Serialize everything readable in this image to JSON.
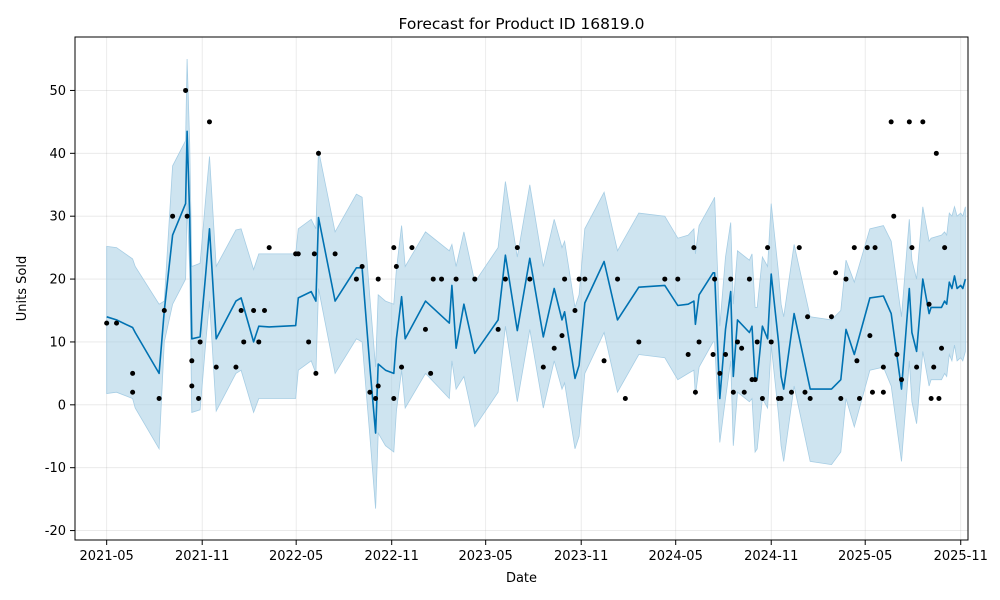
{
  "chart_data": {
    "type": "line",
    "title": "Forecast for Product ID 16819.0",
    "xlabel": "Date",
    "ylabel": "Units Sold",
    "xlim": [
      "2021-03-01",
      "2025-11-15"
    ],
    "ylim": [
      -21.5,
      58.5
    ],
    "x_ticks": [
      "2021-05",
      "2021-11",
      "2022-05",
      "2022-11",
      "2023-05",
      "2023-11",
      "2024-05",
      "2024-11",
      "2025-05",
      "2025-11"
    ],
    "y_ticks": [
      -20,
      -10,
      0,
      10,
      20,
      30,
      40,
      50
    ],
    "grid": true,
    "colors": {
      "forecast": "#0072B2",
      "interval": "#A6CDE4",
      "observed": "#000000"
    },
    "series": [
      {
        "kind": "forecast",
        "points": [
          [
            "2021-05-01",
            14.0,
            25.2,
            1.8
          ],
          [
            "2021-05-20",
            13.5,
            25.0,
            2.0
          ],
          [
            "2021-06-20",
            12.3,
            23.2,
            1.0
          ],
          [
            "2021-06-25",
            11.5,
            22.0,
            -0.5
          ],
          [
            "2021-08-10",
            5.0,
            16.0,
            -7.0
          ],
          [
            "2021-08-20",
            15.0,
            16.5,
            10.0
          ],
          [
            "2021-09-05",
            27.0,
            38.0,
            16.0
          ],
          [
            "2021-09-30",
            32.0,
            42.0,
            20.0
          ],
          [
            "2021-10-03",
            43.5,
            55.0,
            32.0
          ],
          [
            "2021-10-08",
            30.0,
            41.5,
            21.5
          ],
          [
            "2021-10-12",
            10.5,
            22.0,
            -1.2
          ],
          [
            "2021-10-28",
            10.8,
            22.5,
            -0.8
          ],
          [
            "2021-11-08",
            21.0,
            33.0,
            10.0
          ],
          [
            "2021-11-15",
            28.0,
            39.5,
            16.5
          ],
          [
            "2021-11-28",
            10.5,
            22.0,
            -1.0
          ],
          [
            "2022-01-05",
            16.5,
            27.8,
            5.0
          ],
          [
            "2022-01-15",
            17.0,
            28.0,
            5.5
          ],
          [
            "2022-02-08",
            10.0,
            21.5,
            -1.2
          ],
          [
            "2022-02-18",
            12.5,
            24.0,
            1.0
          ],
          [
            "2022-03-10",
            12.4,
            24.0,
            1.0
          ],
          [
            "2022-04-30",
            12.6,
            24.0,
            1.0
          ],
          [
            "2022-05-05",
            17.0,
            28.0,
            5.5
          ],
          [
            "2022-05-30",
            18.0,
            29.5,
            7.0
          ],
          [
            "2022-06-08",
            16.5,
            28.0,
            5.0
          ],
          [
            "2022-06-13",
            29.8,
            40.5,
            18.5
          ],
          [
            "2022-07-15",
            16.5,
            27.5,
            5.0
          ],
          [
            "2022-08-25",
            21.8,
            33.5,
            10.5
          ],
          [
            "2022-09-05",
            21.8,
            33.0,
            10.0
          ],
          [
            "2022-09-20",
            6.0,
            17.0,
            -5.0
          ],
          [
            "2022-10-01",
            -4.5,
            6.0,
            -16.5
          ],
          [
            "2022-10-06",
            6.5,
            17.5,
            -4.5
          ],
          [
            "2022-10-20",
            5.5,
            16.5,
            -6.5
          ],
          [
            "2022-11-05",
            5.0,
            16.0,
            -7.5
          ],
          [
            "2022-11-10",
            10.5,
            21.5,
            -1.0
          ],
          [
            "2022-11-20",
            17.2,
            28.5,
            5.5
          ],
          [
            "2022-11-27",
            10.5,
            22.0,
            -0.5
          ],
          [
            "2023-01-05",
            16.5,
            27.5,
            5.0
          ],
          [
            "2023-02-20",
            13.0,
            24.5,
            1.0
          ],
          [
            "2023-02-25",
            19.0,
            25.5,
            7.0
          ],
          [
            "2023-03-05",
            9.0,
            22.0,
            2.5
          ],
          [
            "2023-03-20",
            16.0,
            27.5,
            4.5
          ],
          [
            "2023-04-10",
            8.2,
            19.5,
            -3.5
          ],
          [
            "2023-05-25",
            13.5,
            25.0,
            2.0
          ],
          [
            "2023-06-08",
            23.8,
            35.5,
            12.5
          ],
          [
            "2023-07-01",
            11.8,
            23.5,
            0.5
          ],
          [
            "2023-07-25",
            23.3,
            35.0,
            12.0
          ],
          [
            "2023-08-20",
            10.8,
            22.0,
            -0.5
          ],
          [
            "2023-09-10",
            18.5,
            29.5,
            7.0
          ],
          [
            "2023-09-25",
            13.5,
            25.0,
            2.5
          ],
          [
            "2023-09-30",
            14.8,
            26.0,
            3.5
          ],
          [
            "2023-10-20",
            4.2,
            15.5,
            -7.0
          ],
          [
            "2023-10-28",
            6.3,
            17.5,
            -5.0
          ],
          [
            "2023-11-08",
            16.2,
            28.0,
            5.0
          ],
          [
            "2023-12-15",
            22.8,
            33.8,
            11.5
          ],
          [
            "2024-01-10",
            13.5,
            24.5,
            2.0
          ],
          [
            "2024-02-20",
            18.7,
            30.5,
            8.0
          ],
          [
            "2024-04-10",
            19.0,
            30.0,
            7.5
          ],
          [
            "2024-05-05",
            15.8,
            26.5,
            4.0
          ],
          [
            "2024-05-25",
            16.0,
            27.0,
            5.0
          ],
          [
            "2024-06-05",
            16.5,
            28.0,
            5.5
          ],
          [
            "2024-06-08",
            12.8,
            24.0,
            1.5
          ],
          [
            "2024-06-15",
            17.5,
            28.5,
            6.0
          ],
          [
            "2024-07-12",
            21.0,
            32.5,
            10.0
          ],
          [
            "2024-07-15",
            21.0,
            33.0,
            10.0
          ],
          [
            "2024-07-25",
            1.0,
            12.5,
            -6.0
          ],
          [
            "2024-08-05",
            12.0,
            23.5,
            1.0
          ],
          [
            "2024-08-15",
            18.0,
            29.0,
            7.0
          ],
          [
            "2024-08-20",
            4.5,
            16.0,
            -6.5
          ],
          [
            "2024-08-28",
            13.5,
            24.5,
            2.0
          ],
          [
            "2024-09-20",
            11.5,
            23.0,
            0.5
          ],
          [
            "2024-09-25",
            12.5,
            24.0,
            1.0
          ],
          [
            "2024-10-01",
            4.0,
            15.5,
            -7.5
          ],
          [
            "2024-10-05",
            4.2,
            15.5,
            -7.0
          ],
          [
            "2024-10-15",
            12.5,
            23.5,
            1.0
          ],
          [
            "2024-10-25",
            10.5,
            22.0,
            -0.5
          ],
          [
            "2024-11-01",
            20.8,
            32.0,
            9.5
          ],
          [
            "2024-11-15",
            10.0,
            21.0,
            -1.5
          ],
          [
            "2024-11-20",
            4.5,
            16.0,
            -6.5
          ],
          [
            "2024-11-25",
            2.5,
            14.0,
            -9.0
          ],
          [
            "2024-12-15",
            14.5,
            25.5,
            3.0
          ],
          [
            "2025-01-15",
            2.5,
            14.0,
            -9.0
          ],
          [
            "2025-02-25",
            2.5,
            13.5,
            -9.5
          ],
          [
            "2025-03-15",
            4.0,
            15.0,
            -7.5
          ],
          [
            "2025-03-25",
            12.0,
            23.0,
            1.0
          ],
          [
            "2025-04-10",
            8.0,
            19.5,
            -3.5
          ],
          [
            "2025-05-10",
            17.0,
            28.0,
            5.5
          ],
          [
            "2025-06-05",
            17.3,
            28.5,
            6.0
          ],
          [
            "2025-06-20",
            14.5,
            26.0,
            3.0
          ],
          [
            "2025-07-10",
            2.5,
            14.0,
            -9.0
          ],
          [
            "2025-07-25",
            18.5,
            29.5,
            7.0
          ],
          [
            "2025-07-30",
            11.5,
            23.0,
            0.5
          ],
          [
            "2025-08-08",
            8.5,
            20.0,
            -3.0
          ],
          [
            "2025-08-20",
            20.0,
            31.5,
            8.5
          ],
          [
            "2025-09-01",
            14.5,
            26.0,
            3.0
          ],
          [
            "2025-09-05",
            15.5,
            26.5,
            4.0
          ],
          [
            "2025-09-25",
            15.5,
            27.0,
            4.0
          ],
          [
            "2025-10-01",
            16.5,
            27.5,
            5.0
          ],
          [
            "2025-10-05",
            16.0,
            27.0,
            4.5
          ],
          [
            "2025-10-10",
            19.5,
            30.5,
            8.0
          ],
          [
            "2025-10-15",
            18.5,
            30.0,
            7.0
          ],
          [
            "2025-10-20",
            20.5,
            31.5,
            9.5
          ],
          [
            "2025-10-25",
            18.5,
            30.0,
            7.0
          ],
          [
            "2025-11-01",
            19.0,
            30.5,
            7.5
          ],
          [
            "2025-11-05",
            18.5,
            30.0,
            7.0
          ],
          [
            "2025-11-10",
            20.0,
            31.5,
            8.5
          ]
        ]
      },
      {
        "kind": "observed",
        "points": [
          [
            "2021-05-01",
            13
          ],
          [
            "2021-05-20",
            13
          ],
          [
            "2021-06-20",
            5
          ],
          [
            "2021-06-20",
            2
          ],
          [
            "2021-08-10",
            1
          ],
          [
            "2021-08-20",
            15
          ],
          [
            "2021-09-05",
            30
          ],
          [
            "2021-09-30",
            50
          ],
          [
            "2021-10-03",
            30
          ],
          [
            "2021-10-12",
            7
          ],
          [
            "2021-10-12",
            3
          ],
          [
            "2021-10-25",
            1
          ],
          [
            "2021-10-28",
            10
          ],
          [
            "2021-11-15",
            45
          ],
          [
            "2021-11-28",
            6
          ],
          [
            "2022-01-05",
            6
          ],
          [
            "2022-01-15",
            15
          ],
          [
            "2022-01-20",
            10
          ],
          [
            "2022-02-08",
            15
          ],
          [
            "2022-02-18",
            10
          ],
          [
            "2022-03-01",
            15
          ],
          [
            "2022-03-10",
            25
          ],
          [
            "2022-04-30",
            24
          ],
          [
            "2022-05-05",
            24
          ],
          [
            "2022-05-25",
            10
          ],
          [
            "2022-06-05",
            24
          ],
          [
            "2022-06-08",
            5
          ],
          [
            "2022-06-13",
            40
          ],
          [
            "2022-07-15",
            24
          ],
          [
            "2022-08-25",
            20
          ],
          [
            "2022-09-05",
            22
          ],
          [
            "2022-09-20",
            2
          ],
          [
            "2022-10-01",
            1
          ],
          [
            "2022-10-06",
            20
          ],
          [
            "2022-10-06",
            3
          ],
          [
            "2022-11-05",
            25
          ],
          [
            "2022-11-05",
            1
          ],
          [
            "2022-11-10",
            22
          ],
          [
            "2022-11-20",
            6
          ],
          [
            "2022-12-10",
            25
          ],
          [
            "2023-01-05",
            12
          ],
          [
            "2023-01-15",
            5
          ],
          [
            "2023-01-20",
            20
          ],
          [
            "2023-02-05",
            20
          ],
          [
            "2023-03-05",
            20
          ],
          [
            "2023-04-10",
            20
          ],
          [
            "2023-05-25",
            12
          ],
          [
            "2023-06-08",
            20
          ],
          [
            "2023-07-01",
            25
          ],
          [
            "2023-07-25",
            20
          ],
          [
            "2023-08-20",
            6
          ],
          [
            "2023-09-10",
            9
          ],
          [
            "2023-09-25",
            11
          ],
          [
            "2023-09-30",
            20
          ],
          [
            "2023-10-20",
            15
          ],
          [
            "2023-10-28",
            20
          ],
          [
            "2023-11-08",
            20
          ],
          [
            "2023-12-15",
            7
          ],
          [
            "2024-01-10",
            20
          ],
          [
            "2024-01-25",
            1
          ],
          [
            "2024-02-20",
            10
          ],
          [
            "2024-04-10",
            20
          ],
          [
            "2024-05-05",
            20
          ],
          [
            "2024-05-25",
            8
          ],
          [
            "2024-06-05",
            25
          ],
          [
            "2024-06-08",
            2
          ],
          [
            "2024-06-15",
            10
          ],
          [
            "2024-07-12",
            8
          ],
          [
            "2024-07-15",
            20
          ],
          [
            "2024-07-25",
            5
          ],
          [
            "2024-08-05",
            8
          ],
          [
            "2024-08-15",
            20
          ],
          [
            "2024-08-20",
            2
          ],
          [
            "2024-08-28",
            10
          ],
          [
            "2024-09-05",
            9
          ],
          [
            "2024-09-10",
            2
          ],
          [
            "2024-09-20",
            20
          ],
          [
            "2024-09-25",
            4
          ],
          [
            "2024-10-01",
            4
          ],
          [
            "2024-10-05",
            10
          ],
          [
            "2024-10-15",
            1
          ],
          [
            "2024-10-25",
            25
          ],
          [
            "2024-11-01",
            10
          ],
          [
            "2024-11-15",
            1
          ],
          [
            "2024-11-20",
            1
          ],
          [
            "2024-12-10",
            2
          ],
          [
            "2024-12-25",
            25
          ],
          [
            "2025-01-05",
            2
          ],
          [
            "2025-01-10",
            14
          ],
          [
            "2025-01-15",
            1
          ],
          [
            "2025-02-25",
            14
          ],
          [
            "2025-03-05",
            21
          ],
          [
            "2025-03-15",
            1
          ],
          [
            "2025-03-25",
            20
          ],
          [
            "2025-04-10",
            25
          ],
          [
            "2025-04-15",
            7
          ],
          [
            "2025-04-20",
            1
          ],
          [
            "2025-05-05",
            25
          ],
          [
            "2025-05-10",
            11
          ],
          [
            "2025-05-15",
            2
          ],
          [
            "2025-05-20",
            25
          ],
          [
            "2025-06-05",
            6
          ],
          [
            "2025-06-05",
            2
          ],
          [
            "2025-06-20",
            45
          ],
          [
            "2025-06-25",
            30
          ],
          [
            "2025-07-01",
            8
          ],
          [
            "2025-07-10",
            4
          ],
          [
            "2025-07-25",
            45
          ],
          [
            "2025-07-30",
            25
          ],
          [
            "2025-08-08",
            6
          ],
          [
            "2025-08-20",
            45
          ],
          [
            "2025-09-01",
            16
          ],
          [
            "2025-09-05",
            1
          ],
          [
            "2025-09-10",
            6
          ],
          [
            "2025-09-15",
            40
          ],
          [
            "2025-09-20",
            1
          ],
          [
            "2025-09-25",
            9
          ],
          [
            "2025-10-01",
            25
          ]
        ]
      }
    ]
  }
}
